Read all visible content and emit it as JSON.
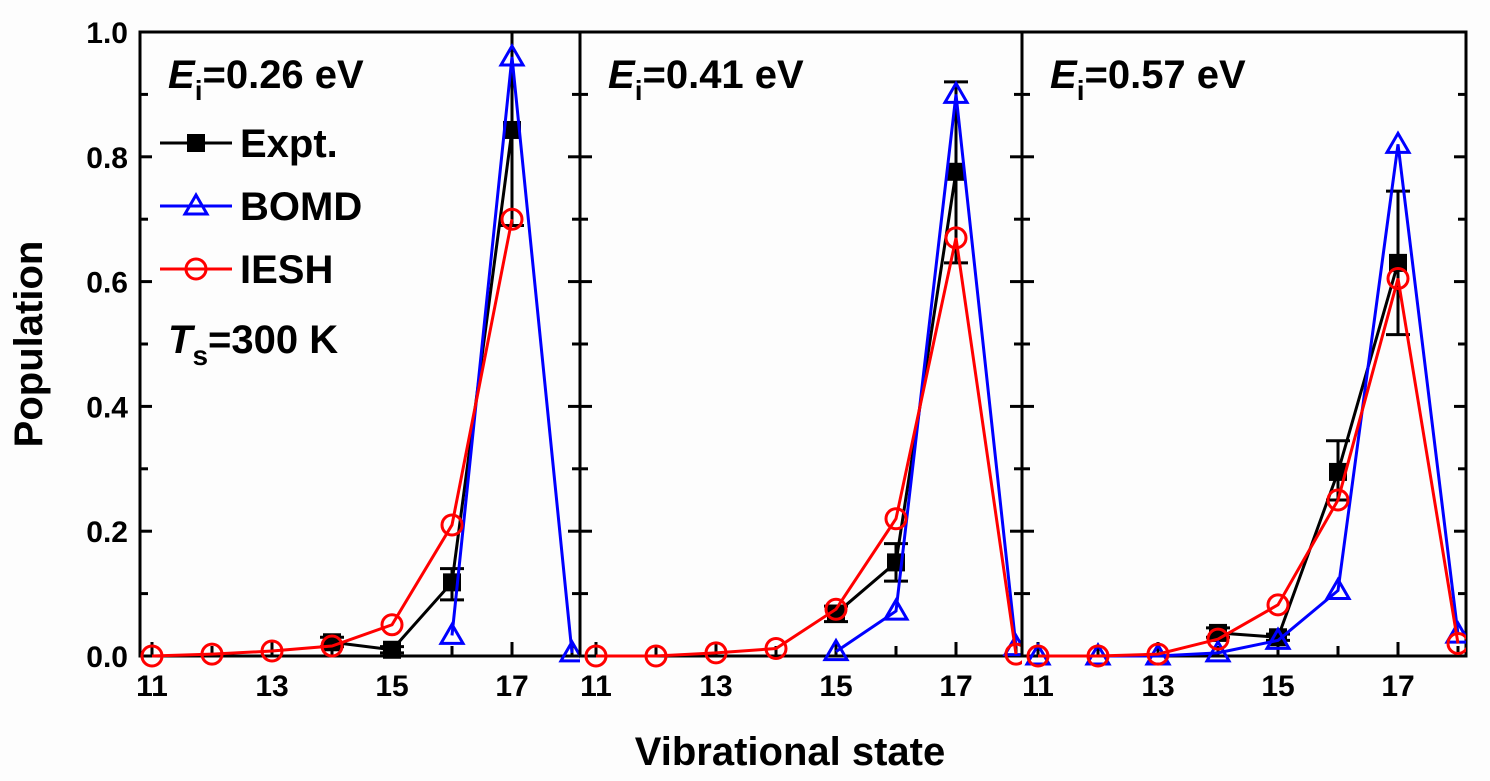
{
  "chart_data": {
    "type": "line",
    "xlabel": "Vibrational state",
    "ylabel": "Population",
    "ylim": [
      0,
      1.0
    ],
    "yticks": [
      "0.0",
      "0.2",
      "0.4",
      "0.6",
      "0.8",
      "1.0"
    ],
    "xticks": [
      "11",
      "13",
      "15",
      "17"
    ],
    "xlim": [
      10.8,
      18.13
    ],
    "grid": false,
    "legend": {
      "placement": "top-left of first panel",
      "entries": [
        {
          "name": "Expt.",
          "color": "#000000",
          "marker": "filled-square"
        },
        {
          "name": "BOMD",
          "color": "#0000ff",
          "marker": "open-triangle"
        },
        {
          "name": "IESH",
          "color": "#ff0000",
          "marker": "open-circle"
        }
      ]
    },
    "temperature_annotation": {
      "symbol": "T",
      "subscript": "s",
      "text": "=300 K"
    },
    "panels": [
      {
        "annotation": {
          "symbol": "E",
          "subscript": "i",
          "text": "=0.26 eV"
        },
        "series": [
          {
            "name": "Expt.",
            "x": [
              14,
              15,
              16,
              17
            ],
            "y": [
              0.022,
              0.01,
              0.118,
              0.843
            ],
            "err_low": [
              0.015,
              0.005,
              0.09,
              0.69
            ],
            "err_high": [
              0.03,
              0.015,
              0.14,
              1.0
            ]
          },
          {
            "name": "BOMD",
            "x": [
              16,
              17,
              18
            ],
            "y": [
              0.033,
              0.96,
              0.005
            ]
          },
          {
            "name": "IESH",
            "x": [
              11,
              12,
              13,
              14,
              15,
              16,
              17
            ],
            "y": [
              0.0,
              0.003,
              0.008,
              0.016,
              0.05,
              0.21,
              0.7
            ]
          }
        ]
      },
      {
        "annotation": {
          "symbol": "E",
          "subscript": "i",
          "text": "=0.41 eV"
        },
        "series": [
          {
            "name": "Expt.",
            "x": [
              15,
              16,
              17
            ],
            "y": [
              0.068,
              0.15,
              0.776
            ],
            "err_low": [
              0.055,
              0.12,
              0.63
            ],
            "err_high": [
              0.08,
              0.18,
              0.92
            ]
          },
          {
            "name": "BOMD",
            "x": [
              15,
              16,
              17,
              18
            ],
            "y": [
              0.007,
              0.072,
              0.9,
              0.015
            ]
          },
          {
            "name": "IESH",
            "x": [
              11,
              12,
              13,
              14,
              15,
              16,
              17,
              18
            ],
            "y": [
              0.0,
              0.0,
              0.005,
              0.012,
              0.075,
              0.22,
              0.67,
              0.003
            ]
          }
        ]
      },
      {
        "annotation": {
          "symbol": "E",
          "subscript": "i",
          "text": "=0.57 eV"
        },
        "series": [
          {
            "name": "Expt.",
            "x": [
              14,
              15,
              16,
              17
            ],
            "y": [
              0.037,
              0.03,
              0.295,
              0.63
            ],
            "err_low": [
              0.03,
              0.025,
              0.25,
              0.515
            ],
            "err_high": [
              0.045,
              0.035,
              0.345,
              0.745
            ]
          },
          {
            "name": "BOMD",
            "x": [
              11,
              12,
              13,
              14,
              15,
              16,
              17,
              18
            ],
            "y": [
              0.0,
              0.0,
              0.0,
              0.005,
              0.025,
              0.105,
              0.82,
              0.035
            ]
          },
          {
            "name": "IESH",
            "x": [
              11,
              12,
              13,
              14,
              15,
              16,
              17,
              18
            ],
            "y": [
              0.0,
              0.0,
              0.003,
              0.027,
              0.082,
              0.25,
              0.605,
              0.02
            ]
          }
        ]
      }
    ]
  }
}
